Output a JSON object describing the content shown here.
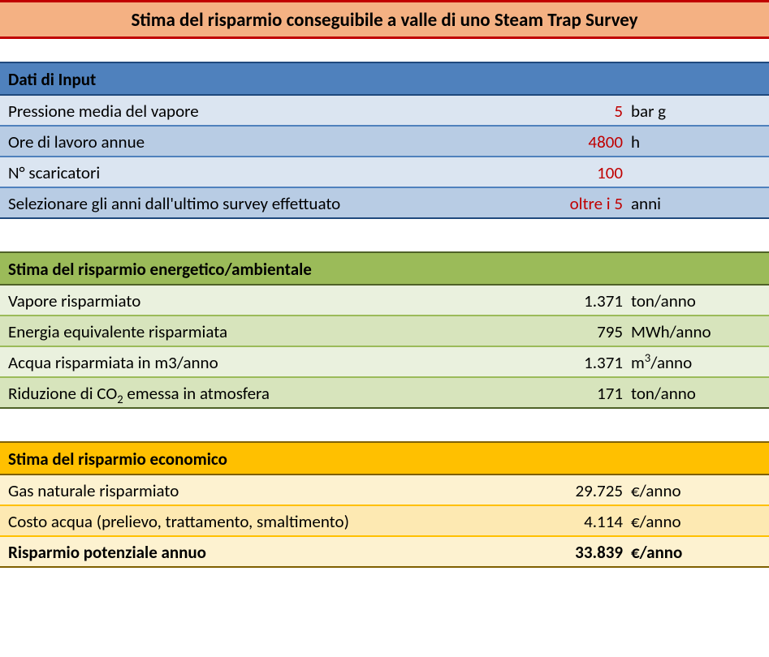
{
  "title": "Stima del risparmio conseguibile a valle di uno Steam Trap Survey",
  "input": {
    "header": "Dati di Input",
    "rows": [
      {
        "label": "Pressione media del vapore",
        "value": "5",
        "unit": "bar g"
      },
      {
        "label": "Ore di lavoro annue",
        "value": "4800",
        "unit": "h"
      },
      {
        "label": "N° scaricatori",
        "value": "100",
        "unit": ""
      },
      {
        "label": "Selezionare gli anni dall'ultimo survey effettuato",
        "value": "oltre i 5",
        "unit": "anni"
      }
    ]
  },
  "energy": {
    "header": "Stima del risparmio energetico/ambientale",
    "rows": [
      {
        "label": "Vapore risparmiato",
        "value": "1.371",
        "unit": "ton/anno"
      },
      {
        "label": "Energia equivalente risparmiata",
        "value": "795",
        "unit": "MWh/anno"
      },
      {
        "label_html": "Acqua risparmiata in m3/anno",
        "value": "1.371",
        "unit_html": "m<sup>3</sup>/anno"
      },
      {
        "label_html": "Riduzione di CO<sub>2</sub> emessa in atmosfera",
        "value": "171",
        "unit": "ton/anno"
      }
    ]
  },
  "economic": {
    "header": "Stima del risparmio economico",
    "rows": [
      {
        "label": "Gas naturale risparmiato",
        "value": "29.725",
        "unit": "€/anno",
        "bold": false
      },
      {
        "label": "Costo acqua (prelievo, trattamento, smaltimento)",
        "value": "4.114",
        "unit": "€/anno",
        "bold": false
      },
      {
        "label": "Risparmio potenziale annuo",
        "value": "33.839",
        "unit": "€/anno",
        "bold": true
      }
    ]
  },
  "colors": {
    "title_bg": "#f4b183",
    "title_border": "#c00000",
    "blue_header_bg": "#4f81bd",
    "blue_border_dark": "#1f497d",
    "blue_odd": "#dbe5f1",
    "blue_even": "#b8cce4",
    "blue_row_border": "#4f81bd",
    "input_value_color": "#c00000",
    "green_header_bg": "#9bbb59",
    "green_border_dark": "#4f6228",
    "green_odd": "#eaf1de",
    "green_even": "#d7e4bc",
    "green_row_border": "#9bbb59",
    "gold_header_bg": "#ffc000",
    "gold_border_dark": "#7f6000",
    "gold_odd": "#fdf2d0",
    "gold_even": "#fde9b2",
    "gold_row_border": "#ffc000"
  }
}
